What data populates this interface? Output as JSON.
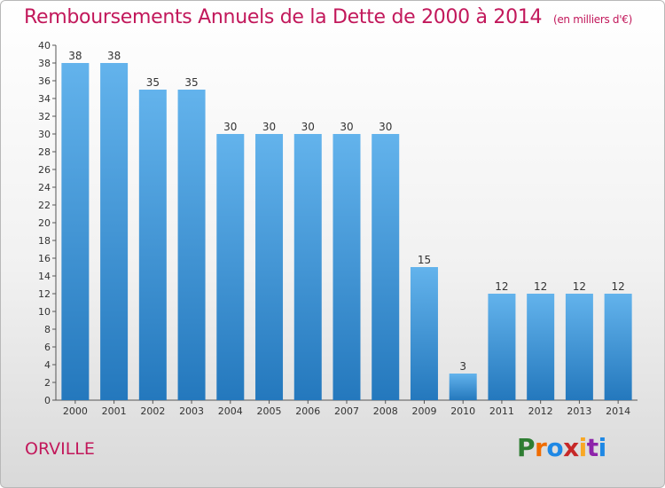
{
  "title": "Remboursements Annuels de la Dette de 2000 à 2014",
  "unit": "(en milliers d'€)",
  "commune": "ORVILLE",
  "brand": {
    "letters": [
      "P",
      "r",
      "o",
      "x",
      "i",
      "t",
      "i"
    ],
    "colors": [
      "#2e7d32",
      "#ef6c00",
      "#1e88e5",
      "#c62828",
      "#f9a825",
      "#8e24aa",
      "#1e88e5"
    ]
  },
  "colors": {
    "title": "#c2185b",
    "bar_top": "#63b3ec",
    "bar_bottom": "#2478bd",
    "text": "#333333"
  },
  "chart_data": {
    "type": "bar",
    "categories": [
      "2000",
      "2001",
      "2002",
      "2003",
      "2004",
      "2005",
      "2006",
      "2007",
      "2008",
      "2009",
      "2010",
      "2011",
      "2012",
      "2013",
      "2014"
    ],
    "values": [
      38,
      38,
      35,
      35,
      30,
      30,
      30,
      30,
      30,
      15,
      3,
      12,
      12,
      12,
      12
    ],
    "ylim": [
      0,
      40
    ],
    "ytick_step": 2,
    "grid": false,
    "data_labels": true
  }
}
